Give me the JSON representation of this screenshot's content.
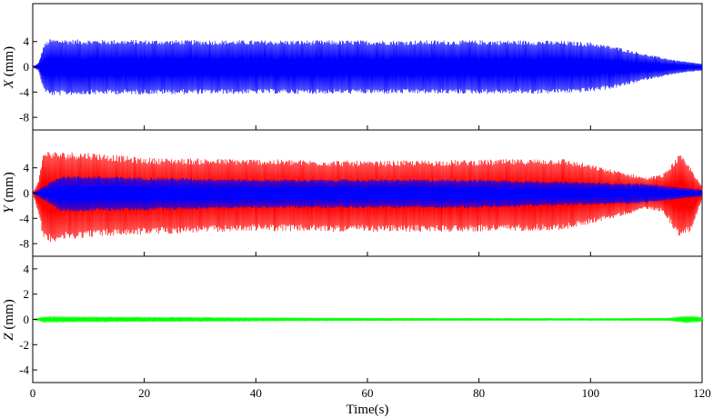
{
  "chart_data": [
    {
      "type": "line",
      "panel": "top",
      "ylabel_var": "X",
      "ylabel_unit": " (mm)",
      "yticks": [
        4,
        0,
        -4,
        -8
      ],
      "ylim": [
        -10,
        10
      ],
      "xlim": [
        0,
        120
      ],
      "series": [
        {
          "color": "#0000ff",
          "description": "high-frequency oscillation envelope",
          "envelope": {
            "t": [
              0,
              1,
              2,
              3,
              10,
              40,
              70,
              90,
              95,
              100,
              105,
              110,
              115,
              118,
              120
            ],
            "upper": [
              0,
              0.6,
              3.5,
              4.4,
              4.3,
              4.2,
              4.2,
              4.2,
              4.1,
              3.9,
              3.1,
              2.0,
              1.1,
              0.7,
              0.5
            ],
            "lower": [
              0,
              -0.6,
              -3.8,
              -4.6,
              -4.4,
              -4.3,
              -4.3,
              -4.3,
              -4.2,
              -4.0,
              -3.3,
              -2.1,
              -1.2,
              -0.8,
              -0.6
            ]
          }
        }
      ]
    },
    {
      "type": "line",
      "panel": "middle",
      "ylabel_var": "Y",
      "ylabel_unit": " (mm)",
      "yticks": [
        4,
        0,
        -4,
        -8
      ],
      "ylim": [
        -10,
        10
      ],
      "xlim": [
        0,
        120
      ],
      "series": [
        {
          "color": "#ff0000",
          "description": "high-frequency oscillation envelope",
          "envelope": {
            "t": [
              0,
              1,
              2,
              5,
              10,
              20,
              40,
              60,
              80,
              95,
              105,
              110,
              113,
              116,
              118,
              120
            ],
            "upper": [
              0,
              2.0,
              6.8,
              6.5,
              6.5,
              5.6,
              5.4,
              5.1,
              5.3,
              5.5,
              3.5,
              2.5,
              3.0,
              6.2,
              4.0,
              1.0
            ],
            "lower": [
              0,
              -3.0,
              -7.8,
              -7.6,
              -7.0,
              -6.6,
              -6.0,
              -6.2,
              -6.1,
              -5.9,
              -3.8,
              -2.5,
              -3.0,
              -7.2,
              -6.0,
              -1.0
            ]
          }
        },
        {
          "color": "#0000ff",
          "description": "inner oscillation (overlaid)",
          "envelope": {
            "t": [
              0,
              5,
              40,
              80,
              110,
              120
            ],
            "upper": [
              0,
              2.8,
              2.2,
              2.2,
              1.5,
              0.5
            ],
            "lower": [
              0,
              -3.0,
              -2.4,
              -2.4,
              -1.6,
              -0.5
            ]
          }
        }
      ]
    },
    {
      "type": "line",
      "panel": "bottom",
      "ylabel_var": "Z",
      "ylabel_unit": " (mm)",
      "yticks": [
        4,
        2,
        0,
        -2,
        -4
      ],
      "ylim": [
        -5,
        5
      ],
      "xlim": [
        0,
        120
      ],
      "xticks": [
        0,
        20,
        40,
        60,
        80,
        100,
        120
      ],
      "xlabel": "Time(s)",
      "series": [
        {
          "color": "#00ff00",
          "description": "near-zero oscillation",
          "envelope": {
            "t": [
              0,
              2,
              20,
              60,
              100,
              114,
              117,
              120
            ],
            "upper": [
              0,
              0.25,
              0.2,
              0.12,
              0.1,
              0.12,
              0.3,
              0.2
            ],
            "lower": [
              0,
              -0.25,
              -0.2,
              -0.12,
              -0.1,
              -0.12,
              -0.3,
              -0.2
            ]
          }
        }
      ]
    }
  ]
}
